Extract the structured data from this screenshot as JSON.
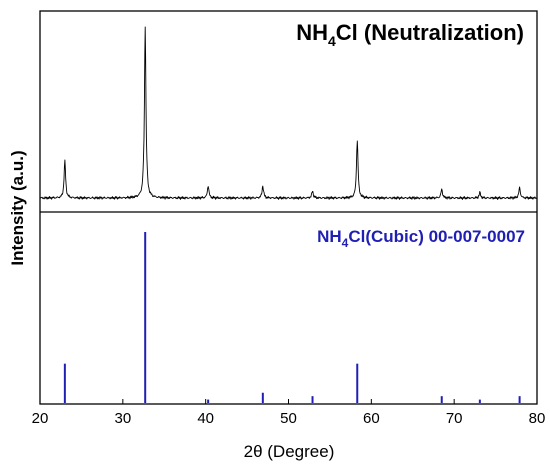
{
  "chart_data": {
    "type": "line",
    "title": "NH4Cl (Neutralization)",
    "xlabel": "2θ (Degree)",
    "ylabel": "Intensity (a.u.)",
    "xlim": [
      20,
      80
    ],
    "xticks": [
      20,
      30,
      40,
      50,
      60,
      70,
      80
    ],
    "grid": false,
    "panels": [
      {
        "label": "NH4Cl (Neutralization)",
        "label_parts": {
          "pre": "NH",
          "sub": "4",
          "post": "Cl (Neutralization)"
        },
        "kind": "xrd-pattern",
        "color": "#000000",
        "relative_peak_intensities": [
          {
            "x": 23.0,
            "y": 0.21
          },
          {
            "x": 32.7,
            "y": 0.99
          },
          {
            "x": 40.3,
            "y": 0.07
          },
          {
            "x": 46.9,
            "y": 0.07
          },
          {
            "x": 52.9,
            "y": 0.04
          },
          {
            "x": 58.3,
            "y": 0.33
          },
          {
            "x": 68.5,
            "y": 0.05
          },
          {
            "x": 73.1,
            "y": 0.03
          },
          {
            "x": 77.9,
            "y": 0.06
          }
        ]
      },
      {
        "label": "NH4Cl(Cubic) 00-007-0007",
        "label_parts": {
          "pre": "NH",
          "sub": "4",
          "post": "Cl(Cubic) 00-007-0007"
        },
        "kind": "reference-sticks",
        "color": "#1f1fb4",
        "sticks": [
          {
            "x": 23.0,
            "y": 0.23
          },
          {
            "x": 32.7,
            "y": 1.0
          },
          {
            "x": 40.3,
            "y": 0.02
          },
          {
            "x": 46.9,
            "y": 0.06
          },
          {
            "x": 52.9,
            "y": 0.04
          },
          {
            "x": 58.3,
            "y": 0.23
          },
          {
            "x": 68.5,
            "y": 0.04
          },
          {
            "x": 73.1,
            "y": 0.02
          },
          {
            "x": 77.9,
            "y": 0.04
          }
        ]
      }
    ]
  }
}
